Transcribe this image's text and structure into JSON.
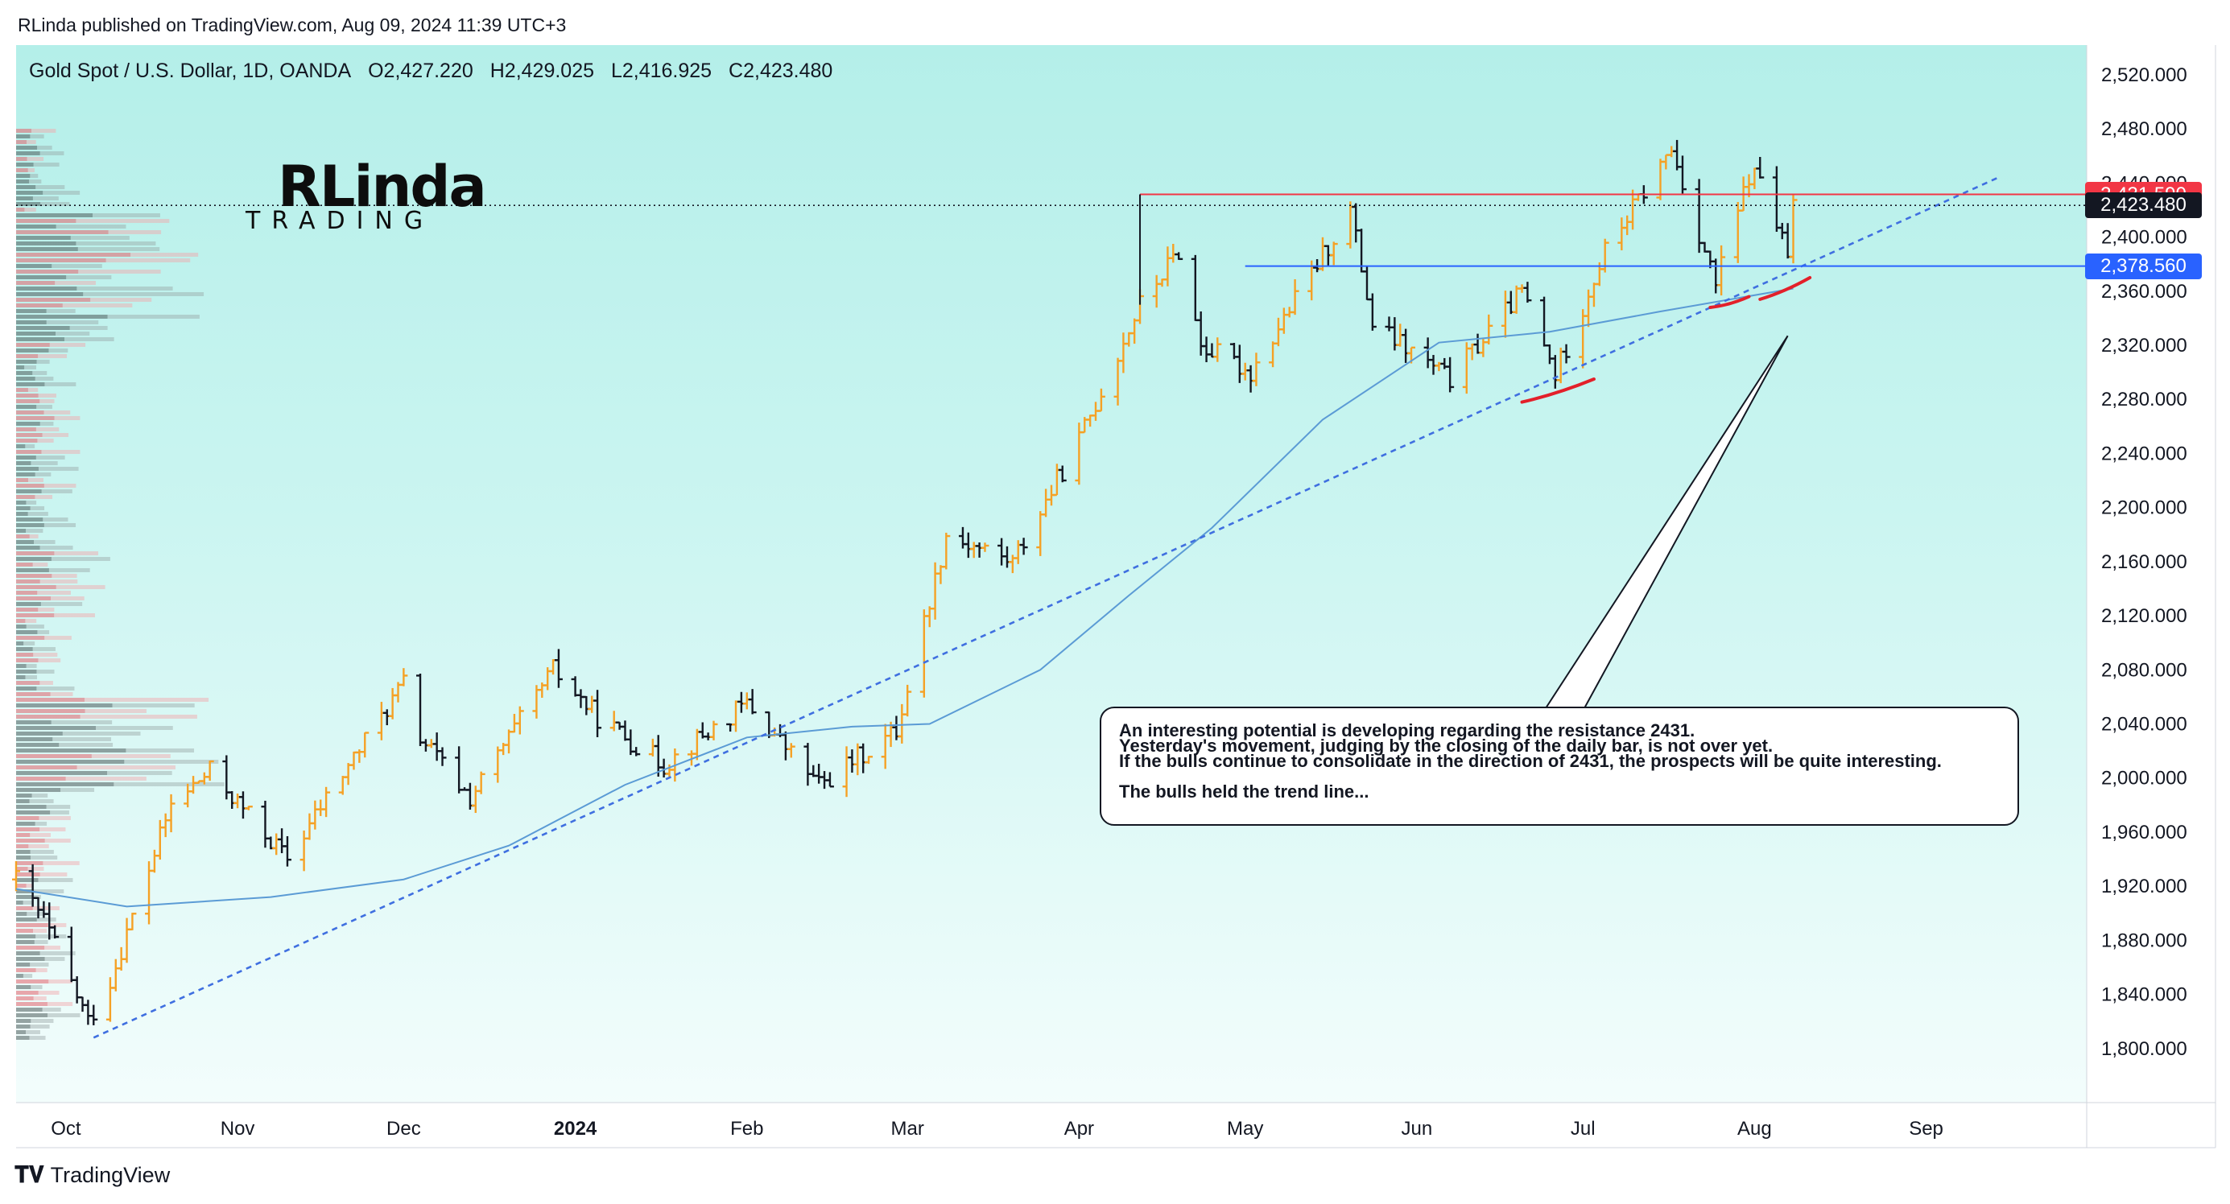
{
  "header": {
    "published": "RLinda published on TradingView.com, Aug 09, 2024 11:39 UTC+3"
  },
  "legend": {
    "symbol": "Gold Spot / U.S. Dollar, 1D, OANDA",
    "open": "O2,427.220",
    "high": "H2,429.025",
    "low": "L2,416.925",
    "close": "C2,423.480"
  },
  "logo": {
    "main": "RLinda",
    "sub": "TRADING"
  },
  "price_tags": {
    "resistance": {
      "label": "2,431.590",
      "color": "#f23645"
    },
    "last": {
      "label": "2,423.480",
      "color": "#131722"
    },
    "support": {
      "label": "2,378.560",
      "color": "#2962ff"
    }
  },
  "note": {
    "lines": [
      "An interesting potential is developing regarding the resistance 2431.",
      "Yesterday's movement, judging by the closing of the daily bar, is not over yet.",
      "If the bulls continue to consolidate in the direction of 2431, the prospects will be quite interesting.",
      "",
      "The bulls held the trend line..."
    ]
  },
  "footer": {
    "brand": "TradingView",
    "icon": "tradingview-logo-icon"
  },
  "colors": {
    "up_bar": "#f5a125",
    "down_bar": "#131722",
    "ma_line": "#5b9bd5",
    "trendline": "#3f6fe0",
    "resistance": "#f23645",
    "support": "#2962ff",
    "annotation_red": "#e3202a"
  },
  "chart_data": {
    "type": "ohlc",
    "title": "Gold Spot / U.S. Dollar, 1D, OANDA",
    "y_ticks": [
      "2,520.000",
      "2,480.000",
      "2,440.000",
      "2,400.000",
      "2,360.000",
      "2,320.000",
      "2,280.000",
      "2,240.000",
      "2,200.000",
      "2,160.000",
      "2,120.000",
      "2,080.000",
      "2,040.000",
      "2,000.000",
      "1,960.000",
      "1,920.000",
      "1,880.000",
      "1,840.000",
      "1,800.000"
    ],
    "x_ticks": [
      {
        "label": "Oct",
        "date": "2023-10-01",
        "bold": false
      },
      {
        "label": "Nov",
        "date": "2023-11-01",
        "bold": false
      },
      {
        "label": "Dec",
        "date": "2023-12-01",
        "bold": false
      },
      {
        "label": "2024",
        "date": "2024-01-01",
        "bold": true
      },
      {
        "label": "Feb",
        "date": "2024-02-01",
        "bold": false
      },
      {
        "label": "Mar",
        "date": "2024-03-01",
        "bold": false
      },
      {
        "label": "Apr",
        "date": "2024-04-01",
        "bold": false
      },
      {
        "label": "May",
        "date": "2024-05-01",
        "bold": false
      },
      {
        "label": "Jun",
        "date": "2024-06-01",
        "bold": false
      },
      {
        "label": "Jul",
        "date": "2024-07-01",
        "bold": false
      },
      {
        "label": "Aug",
        "date": "2024-08-01",
        "bold": false
      },
      {
        "label": "Sep",
        "date": "2024-09-01",
        "bold": false
      }
    ],
    "x_range": [
      "2023-09-22",
      "2024-09-30"
    ],
    "y_range": [
      1760,
      2542
    ],
    "anchors": [
      {
        "date": "2023-09-22",
        "price": 1925
      },
      {
        "date": "2023-09-27",
        "price": 1895
      },
      {
        "date": "2023-10-05",
        "price": 1820
      },
      {
        "date": "2023-10-09",
        "price": 1850
      },
      {
        "date": "2023-10-20",
        "price": 1980
      },
      {
        "date": "2023-10-27",
        "price": 2005
      },
      {
        "date": "2023-11-10",
        "price": 1940
      },
      {
        "date": "2023-11-17",
        "price": 1985
      },
      {
        "date": "2023-12-01",
        "price": 2070
      },
      {
        "date": "2023-12-04",
        "price": 2030
      },
      {
        "date": "2023-12-13",
        "price": 1985
      },
      {
        "date": "2023-12-28",
        "price": 2080
      },
      {
        "date": "2024-01-05",
        "price": 2045
      },
      {
        "date": "2024-01-17",
        "price": 2010
      },
      {
        "date": "2024-02-01",
        "price": 2055
      },
      {
        "date": "2024-02-14",
        "price": 1995
      },
      {
        "date": "2024-02-28",
        "price": 2035
      },
      {
        "date": "2024-03-08",
        "price": 2180
      },
      {
        "date": "2024-03-20",
        "price": 2160
      },
      {
        "date": "2024-04-01",
        "price": 2250
      },
      {
        "date": "2024-04-12",
        "price": 2350
      },
      {
        "date": "2024-04-19",
        "price": 2390
      },
      {
        "date": "2024-04-23",
        "price": 2320
      },
      {
        "date": "2024-05-02",
        "price": 2300
      },
      {
        "date": "2024-05-20",
        "price": 2420
      },
      {
        "date": "2024-05-24",
        "price": 2335
      },
      {
        "date": "2024-06-07",
        "price": 2295
      },
      {
        "date": "2024-06-20",
        "price": 2360
      },
      {
        "date": "2024-06-26",
        "price": 2298
      },
      {
        "date": "2024-07-05",
        "price": 2390
      },
      {
        "date": "2024-07-17",
        "price": 2465
      },
      {
        "date": "2024-07-25",
        "price": 2365
      },
      {
        "date": "2024-07-31",
        "price": 2445
      },
      {
        "date": "2024-08-02",
        "price": 2445
      },
      {
        "date": "2024-08-05",
        "price": 2410
      },
      {
        "date": "2024-08-07",
        "price": 2385
      },
      {
        "date": "2024-08-08",
        "price": 2424
      }
    ],
    "moving_average": [
      {
        "date": "2023-09-22",
        "price": 1918
      },
      {
        "date": "2023-10-12",
        "price": 1905
      },
      {
        "date": "2023-11-07",
        "price": 1912
      },
      {
        "date": "2023-12-01",
        "price": 1925
      },
      {
        "date": "2023-12-20",
        "price": 1950
      },
      {
        "date": "2024-01-10",
        "price": 1995
      },
      {
        "date": "2024-02-01",
        "price": 2030
      },
      {
        "date": "2024-02-20",
        "price": 2038
      },
      {
        "date": "2024-03-05",
        "price": 2040
      },
      {
        "date": "2024-03-25",
        "price": 2080
      },
      {
        "date": "2024-04-10",
        "price": 2135
      },
      {
        "date": "2024-04-25",
        "price": 2185
      },
      {
        "date": "2024-05-15",
        "price": 2265
      },
      {
        "date": "2024-06-05",
        "price": 2322
      },
      {
        "date": "2024-06-25",
        "price": 2330
      },
      {
        "date": "2024-07-15",
        "price": 2345
      },
      {
        "date": "2024-08-08",
        "price": 2362
      }
    ],
    "trendline": {
      "from": {
        "date": "2023-10-06",
        "price": 1808
      },
      "to": {
        "date": "2024-09-14",
        "price": 2444
      }
    },
    "resistance": {
      "price": 2431.59,
      "from": "2024-04-12"
    },
    "support": {
      "price": 2378.56,
      "from": "2024-05-01"
    },
    "last_price": 2423.48,
    "callout_tip": {
      "date": "2024-08-07",
      "price": 2327
    },
    "underlines": [
      {
        "from": {
          "date": "2024-06-20",
          "price": 2278
        },
        "to": {
          "date": "2024-07-03",
          "price": 2295
        }
      },
      {
        "from": {
          "date": "2024-07-24",
          "price": 2348
        },
        "to": {
          "date": "2024-07-31",
          "price": 2356
        }
      },
      {
        "from": {
          "date": "2024-08-02",
          "price": 2354
        },
        "to": {
          "date": "2024-08-11",
          "price": 2370
        }
      }
    ]
  }
}
